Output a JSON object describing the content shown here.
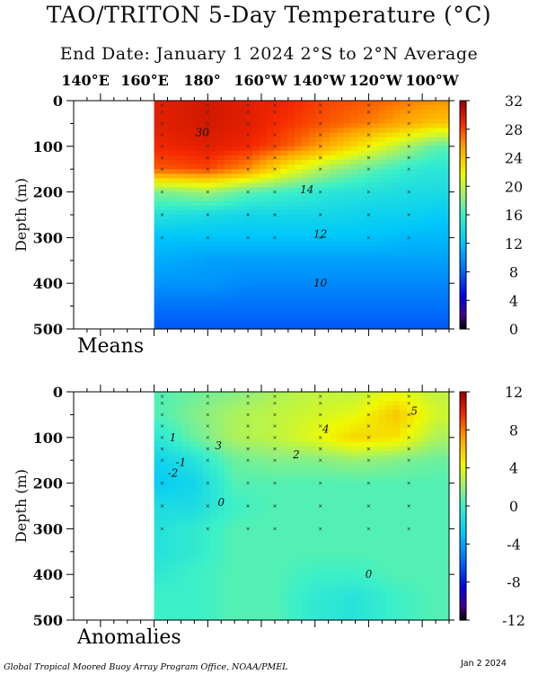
{
  "title": "TAO/TRITON 5-Day Temperature (°C)",
  "subtitle": "End Date: January 1 2024   2°S to 2°N Average",
  "longitude_labels": [
    "140°E",
    "160°E",
    "180°",
    "160°W",
    "140°W",
    "120°W",
    "100°W"
  ],
  "footer_left": "Global Tropical Moored Buoy Array Program Office, NOAA/PMEL",
  "footer_right": "Jan  2 2024",
  "chart_data": [
    {
      "type": "heatmap",
      "panel_label": "Means",
      "ylabel": "Depth (m)",
      "y_ticks": [
        0,
        100,
        200,
        300,
        400,
        500
      ],
      "ylim": [
        500,
        0
      ],
      "x_ticks": [
        "140°E",
        "160°E",
        "180°",
        "160°W",
        "140°W",
        "120°W",
        "100°W"
      ],
      "colorbar_ticks": [
        32,
        28,
        24,
        20,
        16,
        12,
        8,
        4,
        0
      ],
      "colorbar_range": [
        0,
        32
      ],
      "contour_labels": [
        {
          "text": "30",
          "lon": 178,
          "depth": 70
        },
        {
          "text": "14",
          "lon": 217,
          "depth": 195
        },
        {
          "text": "12",
          "lon": 222,
          "depth": 292
        },
        {
          "text": "10",
          "lon": 222,
          "depth": 400
        }
      ],
      "data_profiles": {
        "depths": [
          0,
          50,
          100,
          150,
          200,
          250,
          300,
          350,
          400,
          450,
          500
        ],
        "columns": [
          {
            "lon": 163,
            "temps": [
              29.5,
              29.5,
              29,
              27.5,
              18,
              14.5,
              12,
              11,
              10,
              8.5,
              7.5
            ]
          },
          {
            "lon": 180,
            "temps": [
              30,
              30,
              29.5,
              28,
              19,
              14,
              12,
              10.5,
              10,
              8.5,
              7.5
            ]
          },
          {
            "lon": 195,
            "temps": [
              29.5,
              29.5,
              29,
              26,
              17,
              13.5,
              12,
              10.5,
              9.5,
              8.5,
              7.5
            ]
          },
          {
            "lon": 210,
            "temps": [
              29,
              28.5,
              27.5,
              22,
              16,
              13.5,
              12,
              10.5,
              9.5,
              8.5,
              7.5
            ]
          },
          {
            "lon": 225,
            "temps": [
              28,
              27.5,
              25,
              19,
              15,
              13.5,
              12,
              10.5,
              9.5,
              8.5,
              7.5
            ]
          },
          {
            "lon": 240,
            "temps": [
              27.5,
              26.5,
              22,
              17,
              14.5,
              13,
              12,
              10.5,
              9.5,
              8.5,
              7.5
            ]
          },
          {
            "lon": 255,
            "temps": [
              26.5,
              25,
              19,
              15.5,
              14,
              13,
              11.5,
              10.5,
              9.5,
              8.5,
              7.5
            ]
          },
          {
            "lon": 265,
            "temps": [
              26,
              24,
              17,
              15,
              14,
              12.5,
              11.5,
              10.5,
              9.5,
              8.5,
              7.5
            ]
          }
        ]
      }
    },
    {
      "type": "heatmap",
      "panel_label": "Anomalies",
      "ylabel": "Depth (m)",
      "y_ticks": [
        0,
        100,
        200,
        300,
        400,
        500
      ],
      "ylim": [
        500,
        0
      ],
      "x_ticks": [
        "140°E",
        "160°E",
        "180°",
        "160°W",
        "140°W",
        "120°W",
        "100°W"
      ],
      "colorbar_ticks": [
        12,
        8,
        4,
        0,
        -4,
        -8,
        -12
      ],
      "colorbar_range": [
        -12,
        12
      ],
      "contour_labels": [
        {
          "text": "5",
          "lon": 257,
          "depth": 42
        },
        {
          "text": "4",
          "lon": 224,
          "depth": 82
        },
        {
          "text": "3",
          "lon": 184,
          "depth": 118
        },
        {
          "text": "2",
          "lon": 213,
          "depth": 138
        },
        {
          "text": "1",
          "lon": 167,
          "depth": 100
        },
        {
          "text": "-1",
          "lon": 170,
          "depth": 155
        },
        {
          "text": "-2",
          "lon": 167,
          "depth": 178
        },
        {
          "text": "0",
          "lon": 185,
          "depth": 242
        },
        {
          "text": "0",
          "lon": 240,
          "depth": 400
        }
      ],
      "data_profiles": {
        "depths": [
          0,
          50,
          100,
          150,
          200,
          250,
          300,
          350,
          400,
          450,
          500
        ],
        "columns": [
          {
            "lon": 163,
            "temps": [
              0.5,
              0.5,
              -0.5,
              -2,
              -2.5,
              -1.5,
              -1,
              -1,
              -0.5,
              0,
              0
            ]
          },
          {
            "lon": 175,
            "temps": [
              1,
              1.5,
              1,
              -1,
              -2,
              -1.5,
              -0.5,
              -0.5,
              0,
              0,
              0
            ]
          },
          {
            "lon": 190,
            "temps": [
              1.5,
              2.5,
              2.5,
              1,
              0.5,
              0,
              0.5,
              0.5,
              0.5,
              0.5,
              0.5
            ]
          },
          {
            "lon": 205,
            "temps": [
              2.5,
              3,
              3,
              1.5,
              0.5,
              0.5,
              0.5,
              0.5,
              0.5,
              0.5,
              0.5
            ]
          },
          {
            "lon": 220,
            "temps": [
              3,
              3.5,
              4,
              1.5,
              0.5,
              0.5,
              0.5,
              0.5,
              0,
              -0.5,
              -0.5
            ]
          },
          {
            "lon": 235,
            "temps": [
              3,
              4,
              5.5,
              2,
              0.5,
              0.5,
              0.5,
              0.5,
              0,
              -1,
              -1
            ]
          },
          {
            "lon": 250,
            "temps": [
              4,
              6,
              5,
              1.5,
              0.5,
              0.5,
              0.5,
              0.5,
              0.5,
              0,
              0
            ]
          },
          {
            "lon": 265,
            "temps": [
              3,
              3.5,
              2.5,
              1,
              0.5,
              0.5,
              0.5,
              0.5,
              0.5,
              0.5,
              0.5
            ]
          }
        ]
      }
    }
  ]
}
